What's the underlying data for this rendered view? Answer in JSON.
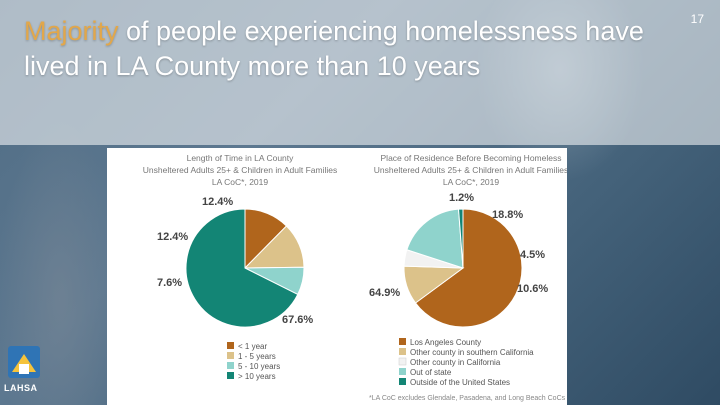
{
  "slide": {
    "title_highlight": "Majority",
    "title_rest": " of people experiencing homelessness have lived in LA County more than 10 years",
    "page_number": "17",
    "logo_text": "LAHSA"
  },
  "colors": {
    "title_highlight": "#e2a74a"
  },
  "chart_data": [
    {
      "type": "pie",
      "title": [
        "Length of Time in LA County",
        "Unsheltered Adults 25+ & Children in Adult Families",
        "LA CoC*, 2019"
      ],
      "categories": [
        "< 1 year",
        "1 - 5 years",
        "5 - 10 years",
        "> 10 years"
      ],
      "values": [
        12.4,
        12.4,
        7.6,
        67.6
      ],
      "labels": [
        "12.4%",
        "12.4%",
        "7.6%",
        "67.6%"
      ],
      "colors": [
        "#b0651c",
        "#dcc28a",
        "#8fd3cc",
        "#138575"
      ],
      "legend": "bottom"
    },
    {
      "type": "pie",
      "title": [
        "Place of Residence Before Becoming Homeless",
        "Unsheltered Adults 25+ & Children in Adult Families",
        "LA CoC*, 2019"
      ],
      "categories": [
        "Los Angeles County",
        "Other county in southern California",
        "Other county in California",
        "Out of state",
        "Outside of the United States"
      ],
      "values": [
        64.9,
        10.6,
        4.5,
        18.8,
        1.2
      ],
      "labels": [
        "64.9%",
        "10.6%",
        "4.5%",
        "18.8%",
        "1.2%"
      ],
      "colors": [
        "#b0651c",
        "#dcc28a",
        "#f2f2f2",
        "#8fd3cc",
        "#138575"
      ],
      "legend": "bottom"
    }
  ],
  "footnote": "*LA CoC excludes Glendale, Pasadena, and Long Beach CoCs"
}
